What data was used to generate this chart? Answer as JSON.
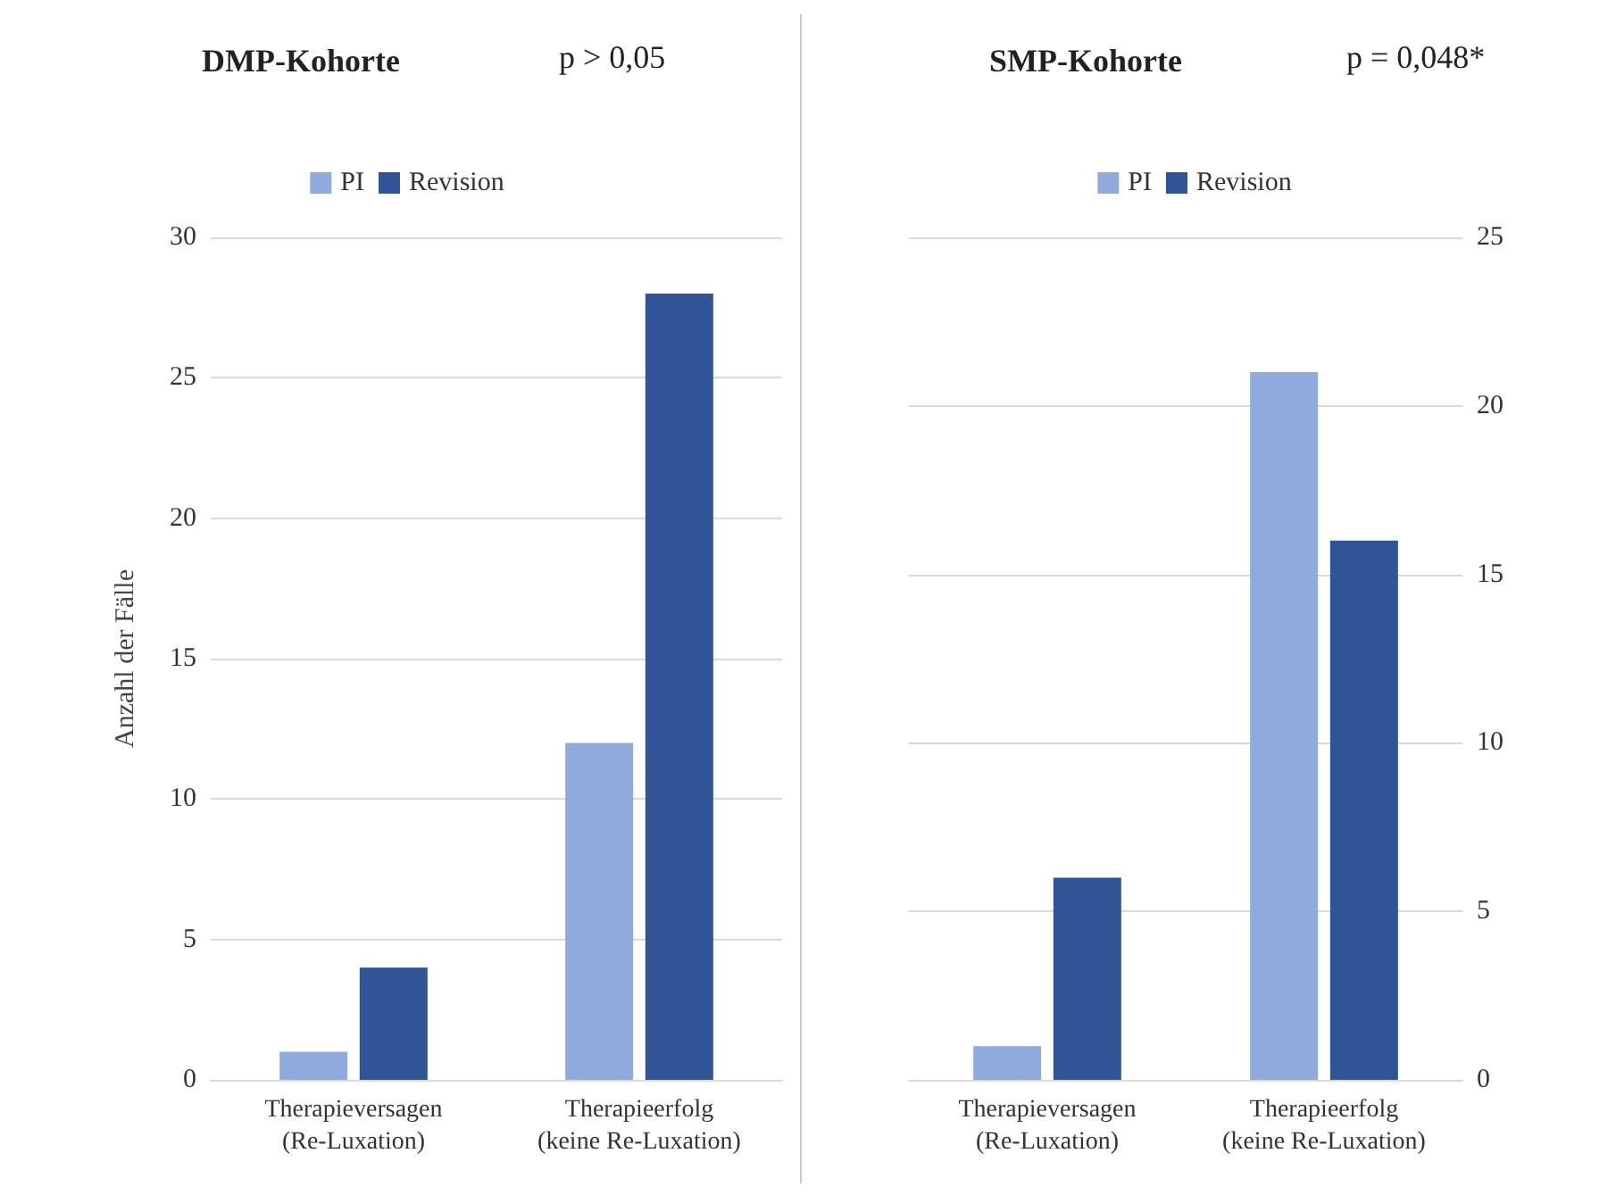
{
  "chart_data": [
    {
      "type": "bar",
      "title": "DMP-Kohorte",
      "annotations": [
        "p > 0,05"
      ],
      "ylabel": "Anzahl der Fälle",
      "categories": [
        "Therapieversagen\n(Re-Luxation)",
        "Therapieerfolg\n(keine Re-Luxation)"
      ],
      "series": [
        {
          "name": "PI",
          "color": "#8faadc",
          "values": [
            1,
            12
          ]
        },
        {
          "name": "Revision",
          "color": "#2f5597",
          "values": [
            4,
            28
          ]
        }
      ],
      "ylim": [
        0,
        30
      ],
      "yticks": [
        0,
        5,
        10,
        15,
        20,
        25,
        30
      ],
      "grid": "y",
      "legend": "top"
    },
    {
      "type": "bar",
      "title": "SMP-Kohorte",
      "annotations": [
        "p = 0,048*"
      ],
      "categories": [
        "Therapieversagen\n(Re-Luxation)",
        "Therapieerfolg\n(keine Re-Luxation)"
      ],
      "series": [
        {
          "name": "PI",
          "color": "#8faadc",
          "values": [
            1,
            21
          ],
          "axis": "y2"
        },
        {
          "name": "Revision",
          "color": "#2f5597",
          "values": [
            6,
            16
          ],
          "axis": "y2"
        }
      ],
      "y2lim": [
        0,
        25
      ],
      "y2ticks": [
        0,
        5,
        10,
        15,
        20,
        25
      ],
      "grid": "y",
      "legend": "top"
    }
  ]
}
